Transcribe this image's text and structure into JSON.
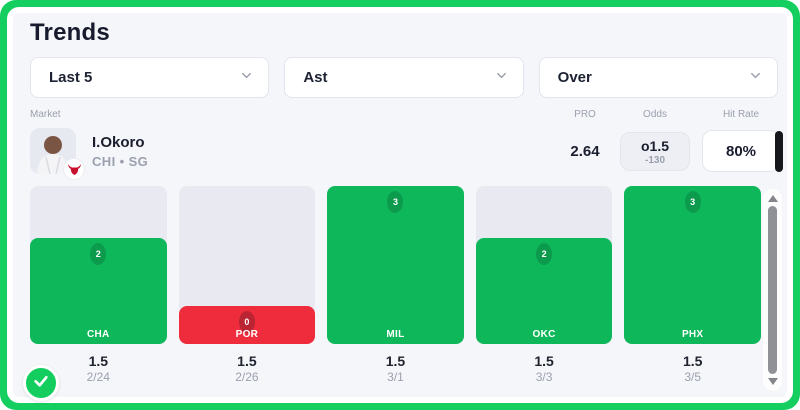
{
  "title": "Trends",
  "filters": [
    {
      "name": "range",
      "label": "Last 5"
    },
    {
      "name": "stat",
      "label": "Ast"
    },
    {
      "name": "side",
      "label": "Over"
    }
  ],
  "columns": {
    "market": "Market",
    "pro": "PRO",
    "odds": "Odds",
    "hit_rate": "Hit Rate"
  },
  "player": {
    "name": "I.Okoro",
    "team_position": "CHI • SG",
    "pro": "2.64",
    "odds_line": "o1.5",
    "odds_price": "-130",
    "hit_rate": "80%"
  },
  "chart_data": {
    "type": "bar",
    "categories": [
      "CHA",
      "POR",
      "MIL",
      "OKC",
      "PHX"
    ],
    "values": [
      2,
      0,
      3,
      2,
      3
    ],
    "results": [
      "over",
      "under",
      "over",
      "over",
      "over"
    ],
    "lines": [
      "1.5",
      "1.5",
      "1.5",
      "1.5",
      "1.5"
    ],
    "dates": [
      "2/24",
      "2/26",
      "3/1",
      "3/3",
      "3/5"
    ],
    "ylim": [
      0,
      3
    ],
    "legend": "none",
    "grid": false
  },
  "colors": {
    "frame_green": "#14cf5f",
    "over_bar": "#0eb85a",
    "over_badge": "#0c9a4c",
    "under_bar": "#ee2c3c",
    "under_badge": "#ba2433",
    "track": "#e9eaf1",
    "accent_text": "#191d2e"
  }
}
